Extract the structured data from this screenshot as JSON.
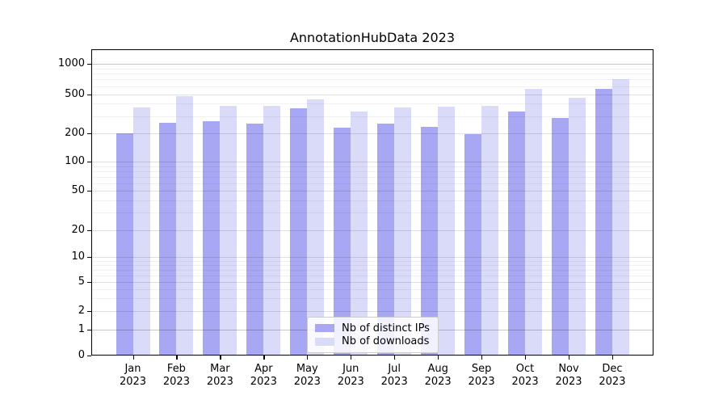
{
  "figure": {
    "title": "AnnotationHubData 2023"
  },
  "colors": {
    "distinct_ips_bar": "#a7a7f4",
    "downloads_bar": "#dadaf9",
    "axis_frame": "#000000",
    "major_grid": "rgba(0,0,0,0.12)",
    "emph_grid": "rgba(0,0,0,0.22)",
    "minor_grid": "rgba(0,0,0,0.055)",
    "legend_border": "#cccccc"
  },
  "chart_data": {
    "type": "bar",
    "title": "AnnotationHubData 2023",
    "categories": [
      "Jan 2023",
      "Feb 2023",
      "Mar 2023",
      "Apr 2023",
      "May 2023",
      "Jun 2023",
      "Jul 2023",
      "Aug 2023",
      "Sep 2023",
      "Oct 2023",
      "Nov 2023",
      "Dec 2023"
    ],
    "series": [
      {
        "name": "Nb of distinct IPs",
        "color": "#a7a7f4",
        "values": [
          200,
          256,
          264,
          249,
          357,
          227,
          252,
          234,
          196,
          335,
          286,
          560
        ]
      },
      {
        "name": "Nb of downloads",
        "color": "#dadaf9",
        "values": [
          365,
          478,
          382,
          380,
          445,
          331,
          368,
          371,
          382,
          565,
          462,
          710
        ]
      }
    ],
    "xlabel": "",
    "ylabel": "",
    "yscale": "symlog",
    "yticks": [
      0,
      1,
      2,
      5,
      10,
      20,
      50,
      100,
      200,
      500,
      1000
    ],
    "minor_yticks": [
      3,
      4,
      6,
      7,
      8,
      9,
      30,
      40,
      60,
      70,
      80,
      90,
      300,
      400,
      600,
      700,
      800,
      900
    ],
    "ylim": [
      0,
      1400
    ],
    "grid": true,
    "legend_position": "lower center"
  }
}
